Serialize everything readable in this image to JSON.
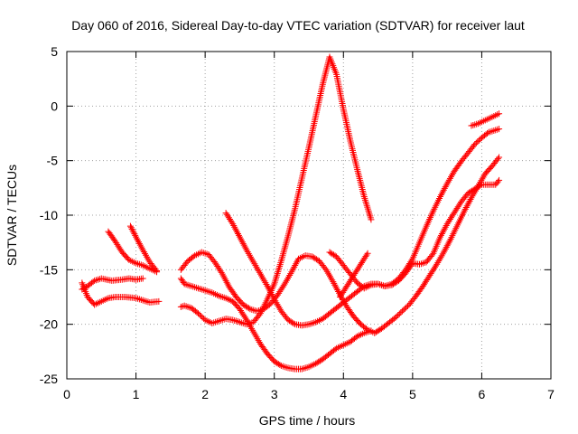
{
  "chart_data": {
    "type": "scatter",
    "title": "Day 060 of 2016, Sidereal Day-to-day VTEC variation (SDTVAR) for receiver laut",
    "xlabel": "GPS time / hours",
    "ylabel": "SDTVAR / TECUs",
    "xlim": [
      0,
      7
    ],
    "ylim": [
      -25,
      5
    ],
    "xticks": [
      0,
      1,
      2,
      3,
      4,
      5,
      6,
      7
    ],
    "yticks": [
      -25,
      -20,
      -15,
      -10,
      -5,
      0,
      5
    ],
    "grid": true,
    "marker": "plus",
    "series_color": "#ff0000",
    "series": [
      {
        "x": [
          0.22,
          0.3,
          0.4,
          0.5,
          0.6,
          0.7,
          0.85,
          1.0,
          1.1,
          1.2,
          1.33
        ],
        "y": [
          -16.2,
          -17.5,
          -18.2,
          -17.9,
          -17.6,
          -17.5,
          -17.5,
          -17.6,
          -17.8,
          -18.0,
          -17.9
        ]
      },
      {
        "x": [
          0.22,
          0.3,
          0.4,
          0.5,
          0.65,
          0.8,
          0.9,
          1.0,
          1.1
        ],
        "y": [
          -16.8,
          -16.5,
          -16.0,
          -15.8,
          -16.0,
          -15.9,
          -15.8,
          -15.9,
          -15.8
        ]
      },
      {
        "x": [
          0.6,
          0.7,
          0.8,
          0.9,
          1.0,
          1.1,
          1.2,
          1.3
        ],
        "y": [
          -11.5,
          -12.4,
          -13.4,
          -14.1,
          -14.4,
          -14.6,
          -14.9,
          -15.2
        ]
      },
      {
        "x": [
          0.92,
          1.0,
          1.1,
          1.2,
          1.3
        ],
        "y": [
          -11.0,
          -12.0,
          -13.2,
          -14.3,
          -15.1
        ]
      },
      {
        "x": [
          1.65,
          1.7,
          1.8,
          1.9,
          2.0,
          2.1,
          2.2,
          2.3,
          2.4,
          2.5,
          2.6,
          2.7,
          2.8,
          2.9,
          3.0,
          3.1,
          3.2,
          3.3,
          3.4,
          3.5,
          3.6,
          3.7,
          3.8,
          3.9,
          4.0,
          4.1,
          4.2,
          4.3,
          4.4
        ],
        "y": [
          -15.8,
          -16.3,
          -16.5,
          -16.7,
          -16.9,
          -17.1,
          -17.4,
          -17.6,
          -17.9,
          -18.6,
          -19.6,
          -20.7,
          -21.8,
          -22.7,
          -23.4,
          -23.8,
          -24.0,
          -24.1,
          -24.1,
          -23.9,
          -23.6,
          -23.2,
          -22.7,
          -22.2,
          -21.9,
          -21.6,
          -21.1,
          -20.8,
          -20.6
        ]
      },
      {
        "x": [
          1.65,
          1.7,
          1.8,
          1.9,
          2.0,
          2.1,
          2.2,
          2.3,
          2.4,
          2.5,
          2.6,
          2.7,
          2.8,
          2.9,
          3.0,
          3.1,
          3.2,
          3.3,
          3.4,
          3.5,
          3.6,
          3.7,
          3.8,
          3.9,
          4.0,
          4.1,
          4.2,
          4.3,
          4.4
        ],
        "y": [
          -18.4,
          -18.3,
          -18.5,
          -19.0,
          -19.6,
          -19.9,
          -19.7,
          -19.5,
          -19.6,
          -19.8,
          -20.0,
          -19.8,
          -19.0,
          -17.7,
          -16.3,
          -14.2,
          -11.9,
          -9.4,
          -6.6,
          -3.8,
          -0.9,
          2.0,
          4.5,
          2.9,
          -0.3,
          -3.2,
          -5.8,
          -8.3,
          -10.4
        ]
      },
      {
        "x": [
          1.65,
          1.75,
          1.85,
          1.95,
          2.05,
          2.15,
          2.25,
          2.35,
          2.45,
          2.55,
          2.65,
          2.75,
          2.85,
          2.95,
          3.05,
          3.15,
          3.25,
          3.35,
          3.45,
          3.55,
          3.65,
          3.75,
          3.85,
          3.95,
          4.05,
          4.15,
          4.25,
          4.35,
          4.45,
          4.55,
          4.65,
          4.75,
          4.85,
          4.95,
          5.05,
          5.15,
          5.25,
          5.35,
          5.45,
          5.55,
          5.65,
          5.75,
          5.85,
          5.95,
          6.05,
          6.15,
          6.25
        ],
        "y": [
          -15.0,
          -14.2,
          -13.7,
          -13.4,
          -13.6,
          -14.4,
          -15.4,
          -16.6,
          -17.5,
          -18.2,
          -18.6,
          -18.8,
          -18.6,
          -18.1,
          -17.3,
          -16.3,
          -15.2,
          -14.0,
          -13.7,
          -13.8,
          -14.2,
          -15.0,
          -16.1,
          -17.3,
          -18.4,
          -19.3,
          -20.0,
          -20.5,
          -20.8,
          -20.4,
          -19.9,
          -19.4,
          -18.8,
          -18.2,
          -17.4,
          -16.5,
          -15.5,
          -14.5,
          -13.4,
          -12.2,
          -10.9,
          -9.6,
          -8.4,
          -7.3,
          -6.2,
          -5.5,
          -4.7
        ]
      },
      {
        "x": [
          2.3,
          2.4,
          2.5,
          2.6,
          2.7,
          2.8,
          2.9,
          3.0,
          3.1,
          3.2,
          3.3,
          3.4,
          3.5,
          3.6,
          3.7,
          3.8,
          3.9,
          4.0,
          4.1,
          4.2,
          4.3,
          4.4,
          4.5,
          4.6,
          4.7,
          4.8,
          4.9,
          5.0,
          5.1,
          5.2,
          5.3,
          5.4,
          5.5,
          5.6,
          5.7,
          5.8,
          5.9,
          6.0,
          6.1,
          6.2,
          6.25
        ],
        "y": [
          -9.8,
          -10.8,
          -12.0,
          -13.2,
          -14.3,
          -15.4,
          -16.5,
          -17.7,
          -18.8,
          -19.6,
          -20.0,
          -20.1,
          -20.0,
          -19.8,
          -19.5,
          -19.0,
          -18.5,
          -18.0,
          -17.5,
          -17.0,
          -16.5,
          -16.3,
          -16.3,
          -16.5,
          -16.3,
          -15.8,
          -15.0,
          -14.0,
          -12.5,
          -11.0,
          -9.6,
          -8.3,
          -7.1,
          -6.0,
          -5.1,
          -4.3,
          -3.5,
          -2.9,
          -2.4,
          -2.2,
          -2.1
        ]
      },
      {
        "x": [
          3.8,
          3.9,
          4.0,
          4.1,
          4.2,
          4.3,
          4.4,
          4.5,
          4.6,
          4.7,
          4.8,
          4.9,
          5.0,
          5.1,
          5.2,
          5.3,
          5.4,
          5.5,
          5.6,
          5.7,
          5.8,
          5.9,
          6.0,
          6.1,
          6.2,
          6.25
        ],
        "y": [
          -13.4,
          -13.8,
          -14.6,
          -15.4,
          -16.2,
          -16.7,
          -16.4,
          -16.3,
          -16.5,
          -16.4,
          -16.0,
          -15.3,
          -14.4,
          -14.5,
          -14.3,
          -13.5,
          -12.0,
          -10.8,
          -9.8,
          -8.8,
          -8.0,
          -7.6,
          -7.2,
          -7.2,
          -7.2,
          -6.8
        ]
      },
      {
        "x": [
          3.95,
          4.05,
          4.15,
          4.25,
          4.35
        ],
        "y": [
          -17.5,
          -16.5,
          -15.5,
          -14.5,
          -13.5
        ]
      },
      {
        "x": [
          5.85,
          5.95,
          6.05,
          6.15,
          6.25
        ],
        "y": [
          -1.8,
          -1.6,
          -1.3,
          -1.0,
          -0.7
        ]
      }
    ]
  }
}
